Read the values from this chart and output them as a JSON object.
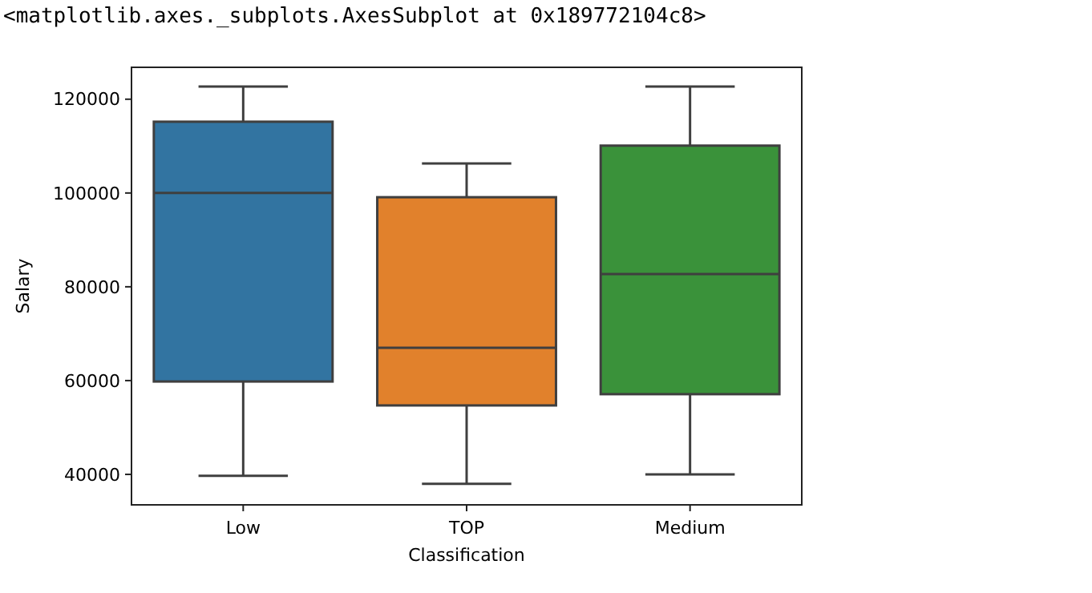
{
  "chart_data": {
    "type": "box",
    "xlabel": "Classification",
    "ylabel": "Salary",
    "categories": [
      "Low",
      "TOP",
      "Medium"
    ],
    "colors": [
      "#3274a1",
      "#e1812c",
      "#3a923a"
    ],
    "boxes": [
      {
        "low": 39700,
        "q1": 59800,
        "median": 100000,
        "q3": 115200,
        "high": 122700
      },
      {
        "low": 38000,
        "q1": 54700,
        "median": 67000,
        "q3": 99100,
        "high": 106300
      },
      {
        "low": 40000,
        "q1": 57100,
        "median": 82700,
        "q3": 110100,
        "high": 122700
      }
    ],
    "ylim": [
      33500,
      126800
    ],
    "yticks": [
      40000,
      60000,
      80000,
      100000,
      120000
    ],
    "grid": false,
    "annotations": [
      "<matplotlib.axes._subplots.AxesSubplot at 0x189772104c8>"
    ]
  }
}
